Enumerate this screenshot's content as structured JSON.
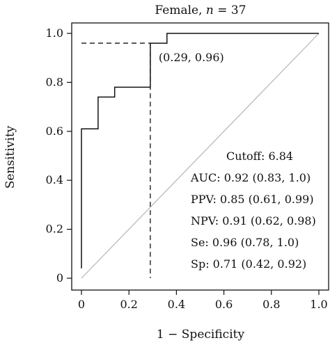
{
  "chart_data": {
    "type": "line",
    "title_prefix": "Female, ",
    "title_n_symbol": "n",
    "title_suffix": " = 37",
    "xlabel": "1 − Specificity",
    "ylabel": "Sensitivity",
    "xlim": [
      0,
      1
    ],
    "ylim": [
      0,
      1
    ],
    "x_ticks": [
      0,
      0.2,
      0.4,
      0.6,
      0.8,
      1.0
    ],
    "x_tick_labels": [
      "0",
      "0.2",
      "0.4",
      "0.6",
      "0.8",
      "1.0"
    ],
    "y_ticks": [
      0,
      0.2,
      0.4,
      0.6,
      0.8,
      1.0
    ],
    "y_tick_labels": [
      "0",
      "0.2",
      "0.4",
      "0.6",
      "0.8",
      "1.0"
    ],
    "grid": false,
    "legend": "none",
    "roc_curve": {
      "x": [
        0,
        0,
        0.07,
        0.07,
        0.14,
        0.14,
        0.29,
        0.29,
        0.36,
        0.36,
        1.0
      ],
      "y": [
        0.04,
        0.61,
        0.61,
        0.74,
        0.74,
        0.78,
        0.78,
        0.96,
        0.96,
        1.0,
        1.0
      ],
      "color": "#111111"
    },
    "reference_line": {
      "x": [
        0,
        1
      ],
      "y": [
        0,
        1
      ],
      "color": "#b5b5b5"
    },
    "cutoff_point": {
      "x": 0.29,
      "y": 0.96,
      "label": "(0.29, 0.96)"
    },
    "stats": [
      "Cutoff: 6.84",
      "AUC: 0.92 (0.83, 1.0)",
      "PPV: 0.85 (0.61, 0.99)",
      "NPV: 0.91 (0.62, 0.98)",
      "Se: 0.96 (0.78, 1.0)",
      "Sp: 0.71 (0.42, 0.92)"
    ]
  }
}
